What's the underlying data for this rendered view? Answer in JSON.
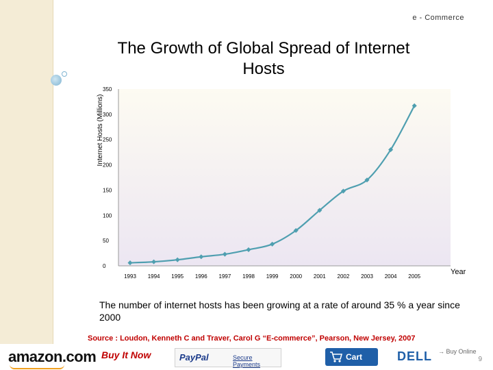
{
  "header": {
    "label": "e - Commerce"
  },
  "chart_data": {
    "type": "line",
    "title": "The Growth of Global Spread of Internet Hosts",
    "xlabel": "Year",
    "ylabel": "Internet Hosts (Millions)",
    "ylim": [
      0,
      350
    ],
    "yticks": [
      0,
      50,
      100,
      150,
      200,
      250,
      300,
      350
    ],
    "categories": [
      "1993",
      "1994",
      "1995",
      "1996",
      "1997",
      "1998",
      "1999",
      "2000",
      "2001",
      "2002",
      "2003",
      "2004",
      "2005"
    ],
    "series": [
      {
        "values": [
          6,
          8,
          12,
          18,
          23,
          32,
          43,
          70,
          110,
          148,
          170,
          230,
          317
        ],
        "color": "#4f9fb0"
      }
    ],
    "plot_background_top": "#fdfbf2",
    "plot_background_bottom": "#ece6f2",
    "grid": false
  },
  "caption": "The number of internet hosts has been growing at a rate of around 35 % a year since 2000",
  "source": "Source : Loudon, Kenneth C and Traver, Carol G “E-commerce”,  Pearson, New Jersey, 2007",
  "logos": {
    "amazon": "amazon.com",
    "buyitnow": "Buy It Now",
    "paypal": "PayPal",
    "secure_payments": "Secure Payments",
    "cart": "Cart",
    "dell": "DELL",
    "buy_online": "→ Buy Online"
  },
  "page_number": "9"
}
